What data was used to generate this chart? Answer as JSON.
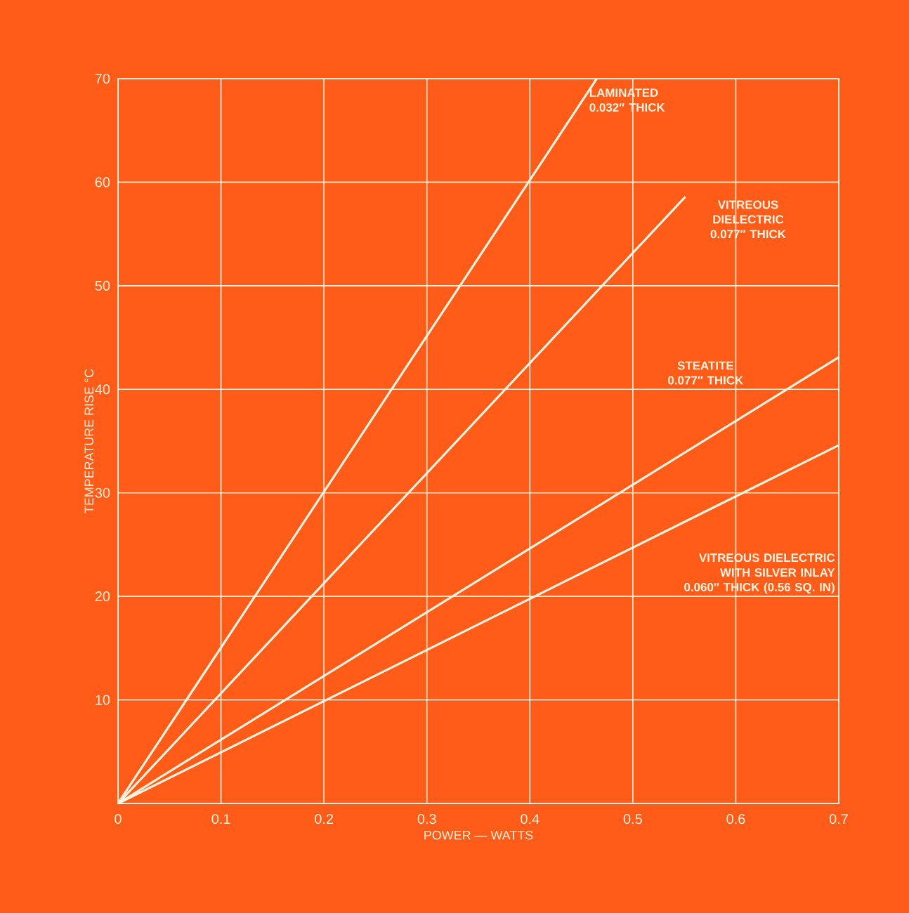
{
  "chart_data": {
    "type": "line",
    "xlabel": "POWER — WATTS",
    "ylabel": "TEMPERATURE RISE °C",
    "xlim": [
      0,
      0.7
    ],
    "ylim": [
      0,
      70
    ],
    "xticks": [
      0,
      0.1,
      0.2,
      0.3,
      0.4,
      0.5,
      0.6,
      0.7
    ],
    "yticks": [
      {
        "value": 0,
        "label": null
      },
      10,
      20,
      30,
      40,
      50,
      60,
      70
    ],
    "grid": true,
    "series": [
      {
        "name": "LAMINATED 0.032″ THICK",
        "color": "#fff3e0",
        "x": [
          0,
          0.465
        ],
        "values": [
          0,
          70
        ]
      },
      {
        "name": "VITREOUS DIELECTRIC 0.077″ THICK",
        "color": "#fff3e0",
        "x": [
          0,
          0.551
        ],
        "values": [
          0,
          58.6
        ]
      },
      {
        "name": "STEATITE 0.077″ THICK",
        "color": "#fff3e0",
        "x": [
          0,
          0.7
        ],
        "values": [
          0,
          43.1
        ]
      },
      {
        "name": "VITREOUS DIELECTRIC WITH SILVER INLAY 0.060″ THICK (0.56 SQ. IN)",
        "color": "#fff3e0",
        "x": [
          0,
          0.7
        ],
        "values": [
          0,
          34.6
        ]
      }
    ]
  }
}
